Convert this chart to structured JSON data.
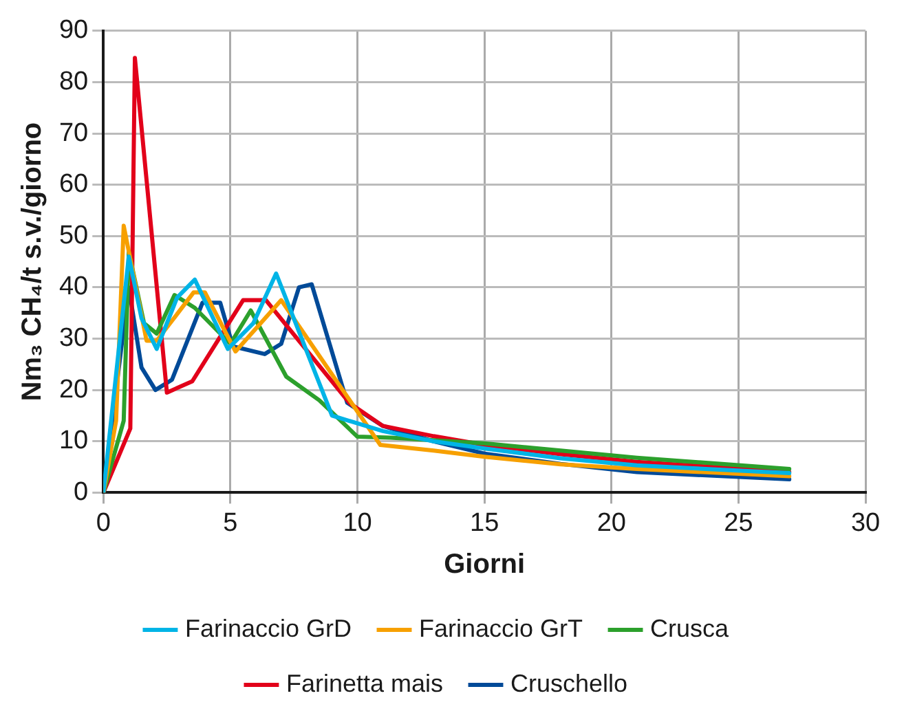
{
  "chart_data": {
    "type": "line",
    "xlabel": "Giorni",
    "ylabel": "Nm₃ CH₄/t s.v./giorno",
    "xlim": [
      0,
      30
    ],
    "xticks": [
      0,
      5,
      10,
      15,
      20,
      25,
      30
    ],
    "ylim": [
      0,
      90
    ],
    "yticks": [
      0,
      10,
      20,
      30,
      40,
      50,
      60,
      70,
      80,
      90
    ],
    "grid": true,
    "legend": "bottom",
    "marker": "none",
    "line_style": "solid",
    "series": [
      {
        "name": "Cruschello",
        "color": "#004a98",
        "x": [
          0,
          1.0,
          1.5,
          2.05,
          2.7,
          3.9,
          4.6,
          5.1,
          6.35,
          7,
          7.7,
          8.2,
          9.6,
          11,
          13,
          15,
          18,
          21,
          27
        ],
        "values": [
          0,
          40,
          24.4,
          20,
          22,
          37,
          37,
          28.5,
          27,
          29,
          40,
          40.6,
          17.5,
          13,
          10,
          7.6,
          5.6,
          4,
          2.6
        ]
      },
      {
        "name": "Farinetta mais",
        "color": "#e2001a",
        "x": [
          0,
          1.06,
          1.24,
          2.5,
          3.5,
          5.5,
          6.4,
          9.7,
          11,
          13,
          15,
          18,
          21,
          27
        ],
        "values": [
          0,
          12.5,
          84.7,
          19.5,
          21.7,
          37.5,
          37.5,
          17.4,
          13,
          11,
          9.3,
          7.5,
          6,
          4
        ]
      },
      {
        "name": "Crusca",
        "color": "#2ca02c",
        "x": [
          0,
          0.8,
          1.0,
          1.6,
          2.1,
          2.8,
          3.6,
          5.0,
          5.8,
          7.2,
          8.5,
          10.0,
          11.3,
          13,
          15,
          18,
          21,
          27
        ],
        "values": [
          0,
          14,
          47,
          33,
          31,
          38.5,
          36,
          29,
          35.5,
          22.6,
          18,
          10.9,
          10.7,
          10.2,
          9.6,
          8.2,
          6.8,
          4.6
        ]
      },
      {
        "name": "Farinaccio GrT",
        "color": "#f7a000",
        "x": [
          0,
          0.5,
          0.8,
          1.7,
          2.1,
          3.55,
          4.0,
          5.2,
          7.0,
          10.9,
          13,
          15,
          18,
          21,
          27
        ],
        "values": [
          0,
          14,
          52,
          29.6,
          29.6,
          39,
          39,
          27.5,
          37.5,
          9.3,
          8.2,
          7,
          5.5,
          4.6,
          3.2
        ]
      },
      {
        "name": "Farinaccio GrD",
        "color": "#00b4e6",
        "x": [
          0,
          1.0,
          1.5,
          2.1,
          2.9,
          3.6,
          4.9,
          5.9,
          6.8,
          9.0,
          11,
          13,
          15,
          18,
          21,
          27
        ],
        "values": [
          0,
          46,
          34,
          28,
          38,
          41.5,
          28,
          33,
          42.7,
          15,
          12,
          10,
          8.6,
          6.7,
          5.3,
          3.8
        ]
      }
    ]
  }
}
